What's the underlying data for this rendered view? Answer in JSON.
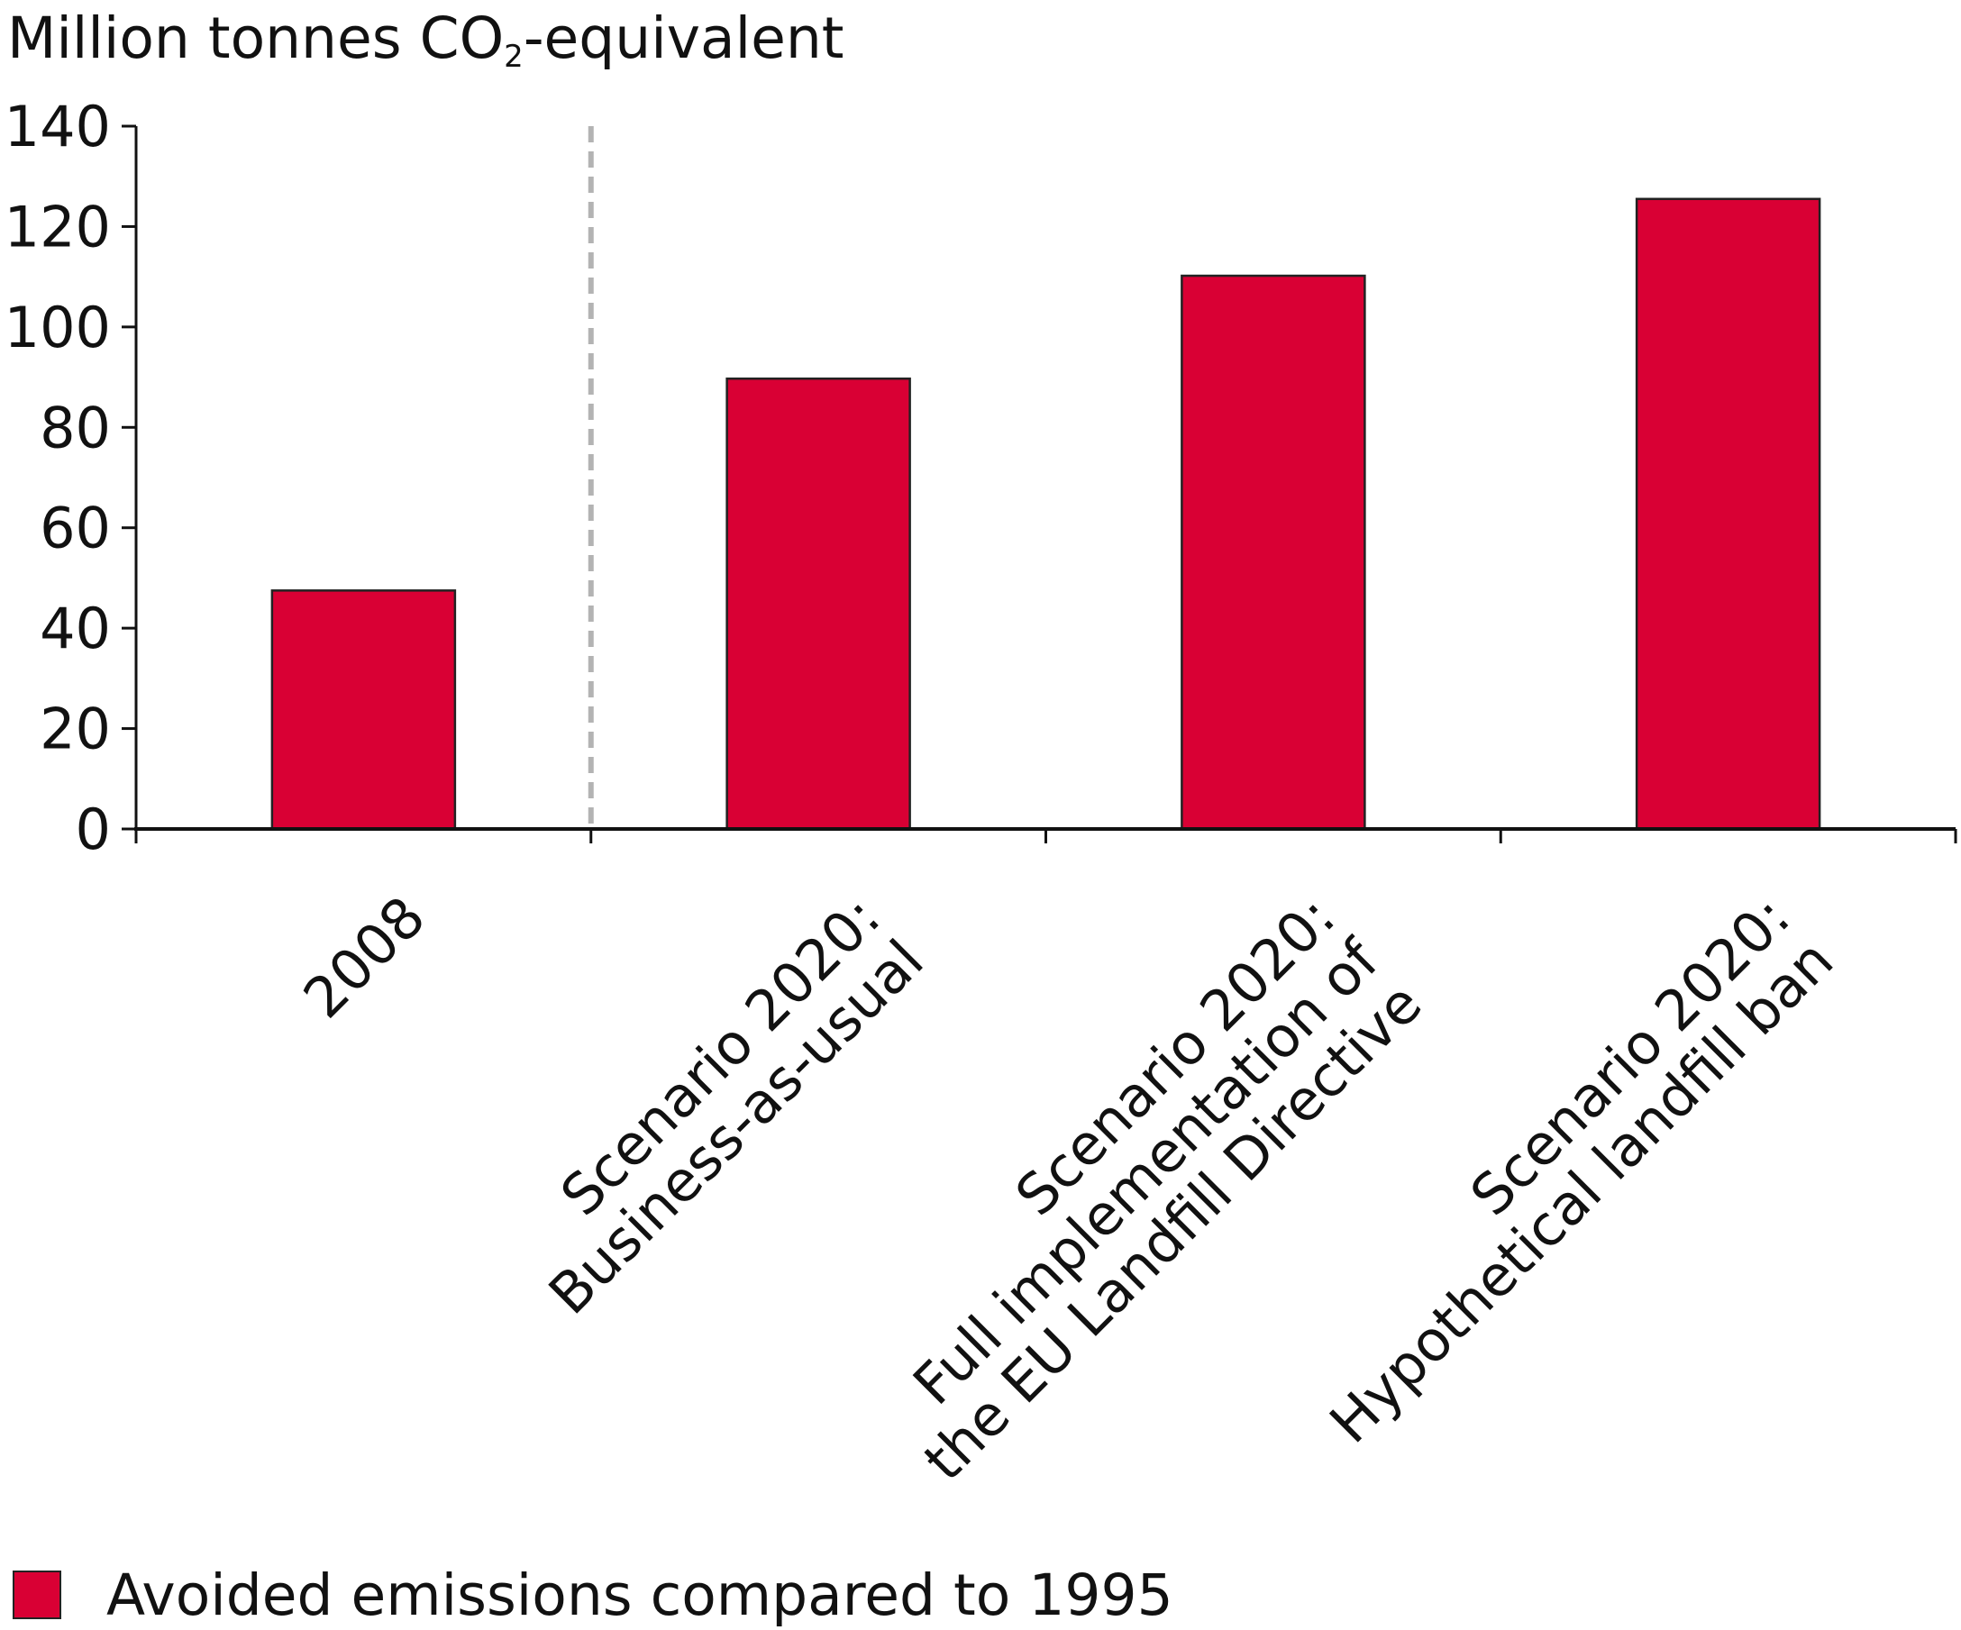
{
  "chart_data": {
    "type": "bar",
    "ylabel": {
      "prefix": "Million tonnes CO",
      "subscript": "2",
      "suffix": "-equivalent"
    },
    "ylim": [
      0,
      140
    ],
    "yticks": [
      0,
      20,
      40,
      60,
      80,
      100,
      120,
      140
    ],
    "categories": [
      [
        "2008"
      ],
      [
        "Scenario 2020:",
        "Business-as-usual"
      ],
      [
        "Scenario 2020:",
        "Full implementation of",
        "the EU Landfill Directive"
      ],
      [
        "Scenario 2020:",
        "Hypothetical landfill ban"
      ]
    ],
    "series": [
      {
        "name": "Avoided emissions compared to 1995",
        "values": [
          47.5,
          89.7,
          110.2,
          125.5
        ],
        "color": "#d90034"
      }
    ],
    "separator_after_category": 0,
    "separator_color": "#b3b3b3",
    "legend_position": "bottom-left"
  }
}
